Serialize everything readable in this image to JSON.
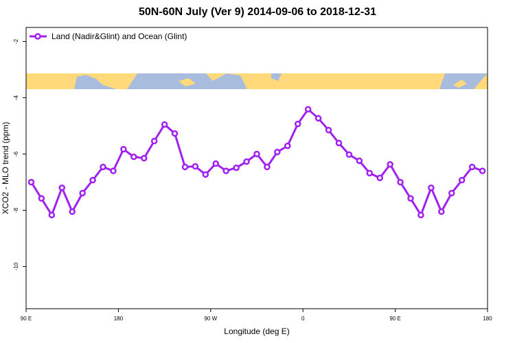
{
  "chart_data": {
    "type": "line",
    "title": "50N-60N July (Ver 9)   2014-09-06 to 2018-12-31",
    "xlabel": "Longitude (deg E)",
    "ylabel": "XCO2 - MLO trend (ppm)",
    "xlim": [
      90,
      540
    ],
    "ylim": [
      -11.5,
      -1.5
    ],
    "xticks": [
      {
        "value": 90,
        "label": "90 E"
      },
      {
        "value": 180,
        "label": "180"
      },
      {
        "value": 270,
        "label": "90 W"
      },
      {
        "value": 360,
        "label": "0"
      },
      {
        "value": 450,
        "label": "90 E"
      },
      {
        "value": 540,
        "label": "180"
      }
    ],
    "yticks": [
      -2,
      -4,
      -6,
      -8,
      -10
    ],
    "legend": "top-left",
    "series": [
      {
        "name": "Land (Nadir&Glint) and Ocean (Glint)",
        "color": "#a020f0",
        "x": [
          95,
          105,
          115,
          125,
          135,
          145,
          155,
          165,
          175,
          185,
          195,
          205,
          215,
          225,
          235,
          245,
          255,
          265,
          275,
          285,
          295,
          305,
          315,
          325,
          335,
          345,
          355,
          365,
          375,
          385,
          395,
          405,
          415,
          425,
          435,
          445,
          455,
          465,
          475,
          485,
          495,
          505,
          515,
          525,
          535
        ],
        "values": [
          -7.0,
          -7.58,
          -8.17,
          -7.2,
          -8.05,
          -7.39,
          -6.93,
          -6.46,
          -6.6,
          -5.83,
          -6.1,
          -6.15,
          -5.54,
          -4.95,
          -5.27,
          -6.46,
          -6.44,
          -6.73,
          -6.34,
          -6.6,
          -6.49,
          -6.27,
          -6.0,
          -6.46,
          -5.93,
          -5.71,
          -4.93,
          -4.41,
          -4.73,
          -5.15,
          -5.61,
          -6.02,
          -6.24,
          -6.68,
          -6.85,
          -6.37,
          -7.0,
          -7.58,
          -8.17,
          -7.2,
          -8.05,
          -7.39,
          -6.93,
          -6.46,
          -6.6
        ]
      }
    ]
  }
}
